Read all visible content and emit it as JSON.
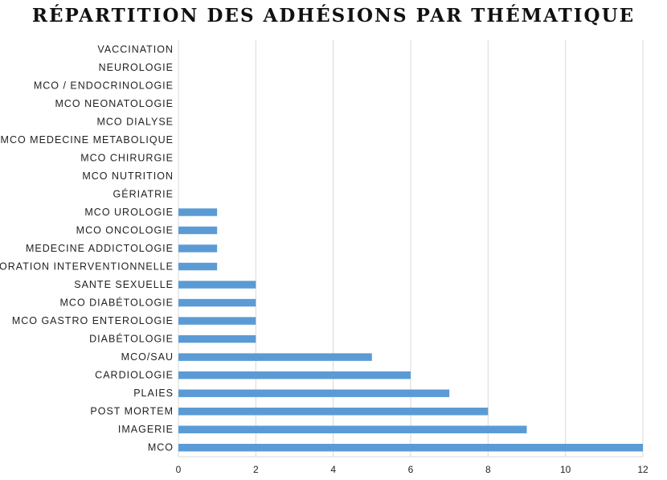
{
  "chart_data": {
    "type": "bar",
    "orientation": "horizontal",
    "title": "RÉPARTITION DES ADHÉSIONS PAR THÉMATIQUE",
    "categories": [
      "MCO",
      "IMAGERIE",
      "POST MORTEM",
      "PLAIES",
      "CARDIOLOGIE",
      "MCO/SAU",
      "DIABÉTOLOGIE",
      "MCO GASTRO ENTEROLOGIE",
      "MCO DIABÉTOLOGIE",
      "SANTE SEXUELLE",
      "EXPLORATION INTERVENTIONNELLE",
      "MEDECINE ADDICTOLOGIE",
      "MCO ONCOLOGIE",
      "MCO UROLOGIE",
      "GÉRIATRIE",
      "MCO NUTRITION",
      "MCO CHIRURGIE",
      "MCO MEDECINE METABOLIQUE",
      "MCO DIALYSE",
      "MCO NEONATOLOGIE",
      "MCO / ENDOCRINOLOGIE",
      "NEUROLOGIE",
      "VACCINATION"
    ],
    "values": [
      12,
      9,
      8,
      7,
      6,
      5,
      2,
      2,
      2,
      2,
      1,
      1,
      1,
      1,
      0,
      0,
      0,
      0,
      0,
      0,
      0,
      0,
      0
    ],
    "xlim": [
      0,
      12
    ],
    "xticks": [
      0,
      2,
      4,
      6,
      8,
      10,
      12
    ],
    "grid": "vertical",
    "legend": "none",
    "bar_color": "#5b9bd5",
    "grid_color": "#d9d9d9"
  }
}
